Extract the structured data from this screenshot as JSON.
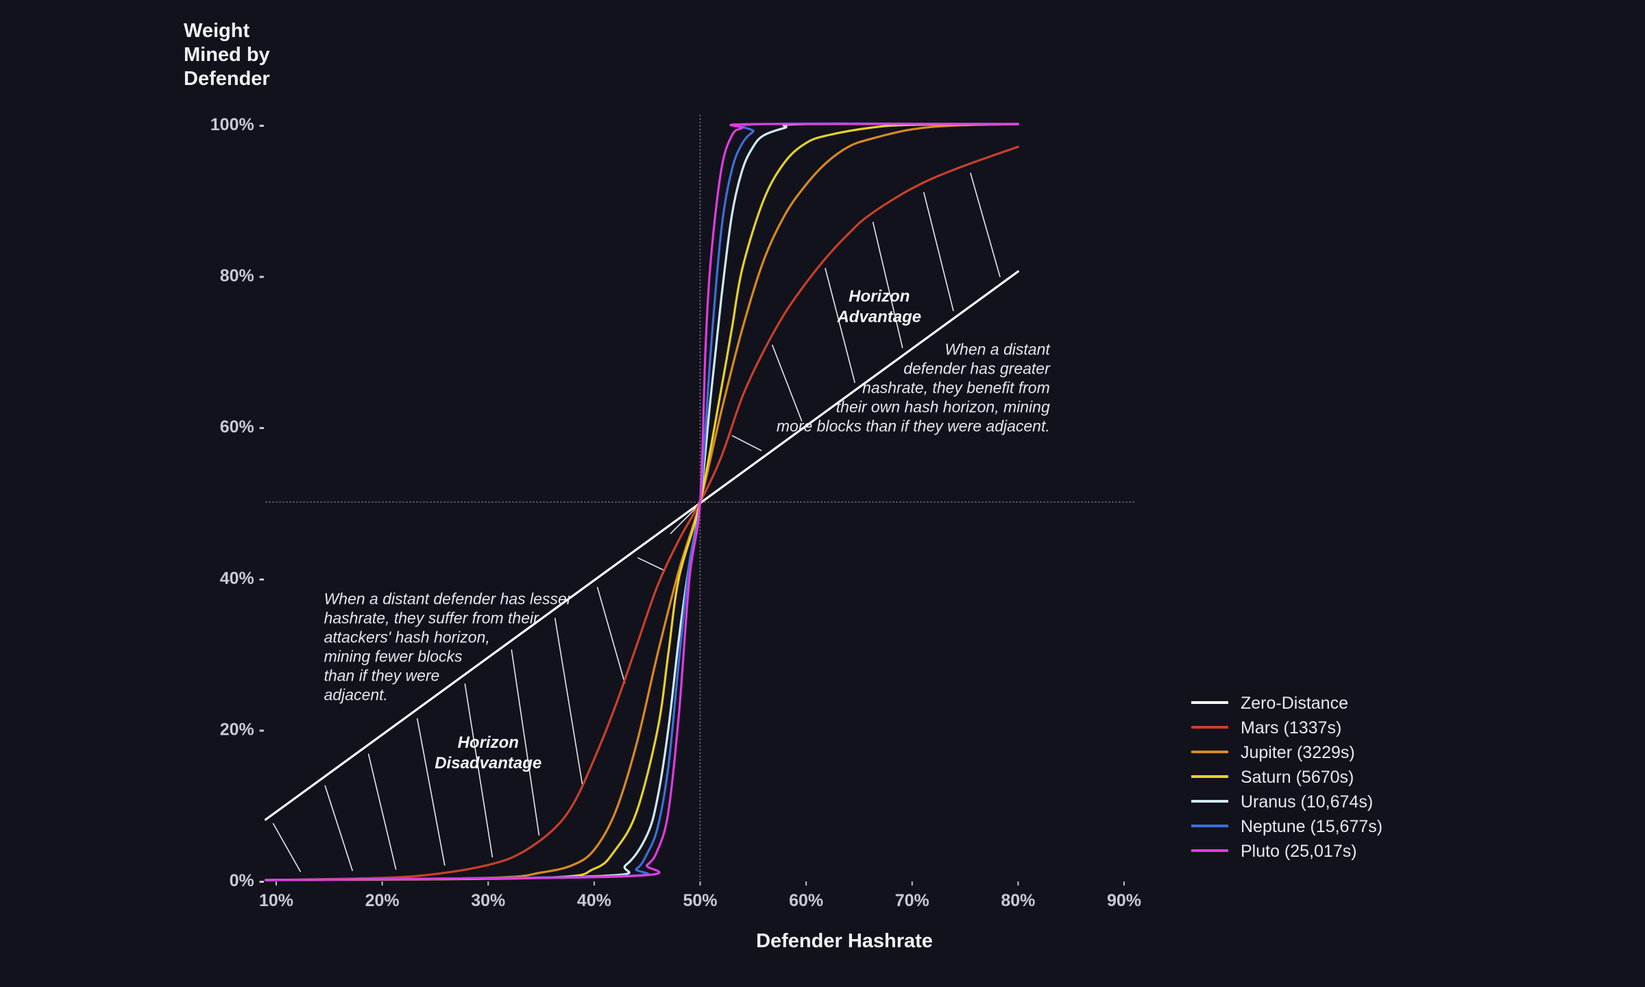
{
  "chart_data": {
    "type": "line",
    "title": "",
    "ylabel_lines": [
      "Weight",
      "Mined by",
      "Defender"
    ],
    "xlabel": "Defender Hashrate",
    "xlim": [
      9,
      91
    ],
    "ylim": [
      0,
      100
    ],
    "xticks": [
      10,
      20,
      30,
      40,
      50,
      60,
      70,
      80,
      90
    ],
    "xtick_labels": [
      "10%",
      "20%",
      "30%",
      "40%",
      "50%",
      "60%",
      "70%",
      "80%",
      "90%"
    ],
    "yticks": [
      0,
      20,
      40,
      60,
      80,
      100
    ],
    "ytick_labels": [
      "0% -",
      "20% -",
      "40% -",
      "60% -",
      "80% -",
      "100% -"
    ],
    "reference_lines": {
      "x": 50,
      "y": 50,
      "style": "dotted"
    },
    "legend_position": "bottom-right",
    "series": [
      {
        "name": "Zero-Distance",
        "color": "#ffffff",
        "x": [
          9,
          80
        ],
        "y": [
          8,
          80.5
        ]
      },
      {
        "name": "Mars (1337s)",
        "color": "#c9402a",
        "x": [
          9,
          20,
          25,
          30,
          33,
          36,
          38,
          40,
          42,
          44,
          46,
          48,
          50,
          52,
          54,
          56,
          58,
          60,
          62,
          64,
          66,
          70,
          74,
          80
        ],
        "y": [
          0,
          0.3,
          0.8,
          2,
          3.5,
          6.5,
          10,
          16,
          23,
          31,
          39,
          45,
          50,
          56,
          64,
          70,
          75,
          79,
          82.5,
          85.5,
          88,
          91.5,
          94,
          97
        ]
      },
      {
        "name": "Jupiter (3229s)",
        "color": "#d98a1f",
        "x": [
          9,
          30,
          35,
          38,
          40,
          42,
          44,
          46,
          48,
          50,
          52,
          54,
          56,
          58,
          60,
          62,
          64,
          66,
          70,
          74,
          80
        ],
        "y": [
          0,
          0.3,
          1,
          2,
          4,
          9,
          18,
          30,
          41,
          50,
          62,
          73,
          82,
          88,
          92,
          95,
          97,
          98,
          99.3,
          99.8,
          100
        ]
      },
      {
        "name": "Saturn (5670s)",
        "color": "#e8d12a",
        "x": [
          9,
          35,
          40,
          42,
          44,
          46,
          47,
          48,
          50,
          52,
          53,
          54,
          56,
          58,
          60,
          62,
          66,
          70,
          80
        ],
        "y": [
          0,
          0.3,
          1.5,
          4,
          9,
          20,
          30,
          40,
          50,
          65,
          73,
          81,
          90,
          95,
          97.5,
          98.5,
          99.5,
          99.9,
          100
        ]
      },
      {
        "name": "Uranus (10,674s)",
        "color": "#cfeaf5",
        "x": [
          9,
          40,
          43,
          45,
          46,
          47,
          48,
          49,
          50,
          51,
          52,
          53,
          54,
          55,
          56,
          58,
          60,
          80
        ],
        "y": [
          0,
          0.5,
          2,
          6,
          11,
          20,
          32,
          42,
          50,
          64,
          77,
          88,
          94,
          97,
          98.5,
          99.5,
          100,
          100
        ]
      },
      {
        "name": "Neptune (15,677s)",
        "color": "#3d6fd8",
        "x": [
          9,
          42,
          44,
          45,
          46,
          47,
          48,
          49,
          50,
          51,
          52,
          53,
          54,
          55,
          56,
          80
        ],
        "y": [
          0,
          0.5,
          1.5,
          3.5,
          7,
          15,
          29,
          42,
          50,
          70,
          86,
          94,
          97.5,
          99,
          100,
          100
        ]
      },
      {
        "name": "Pluto (25,017s)",
        "color": "#e03ce0",
        "x": [
          9,
          43,
          45,
          46,
          47,
          48,
          49,
          50,
          50.5,
          51,
          52,
          53,
          54,
          55,
          80
        ],
        "y": [
          0,
          0.5,
          2,
          4,
          9,
          22,
          40,
          50,
          70,
          82,
          94,
          98.5,
          99.5,
          100,
          100
        ]
      }
    ],
    "hatch_regions": [
      {
        "x_from": 9,
        "x_to": 50,
        "upper": "Zero-Distance",
        "lower": "Mars (1337s)"
      },
      {
        "x_from": 50,
        "x_to": 80,
        "upper": "Mars (1337s)",
        "lower": "Zero-Distance"
      }
    ],
    "annotations": [
      {
        "text_lines": [
          "Horizon",
          "Disadvantage"
        ],
        "x": 30,
        "y": 17.5,
        "style": "bold-italic",
        "align": "center"
      },
      {
        "text_lines": [
          "Horizon",
          "Advantage"
        ],
        "x": 66.9,
        "y": 76.5,
        "style": "bold-italic",
        "align": "center"
      },
      {
        "text_lines": [
          "When a distant defender has lesser",
          "hashrate, they suffer from their",
          "attackers' hash horizon,",
          "mining fewer blocks",
          "than if they were",
          "adjacent."
        ],
        "x": 14.5,
        "y": 36.5,
        "style": "italic",
        "align": "left"
      },
      {
        "text_lines": [
          "When a distant",
          "defender has greater",
          "hashrate, they benefit from",
          "their own hash horizon, mining",
          "more blocks than if they were adjacent."
        ],
        "x": 83,
        "y": 69.5,
        "style": "italic",
        "align": "right"
      }
    ]
  }
}
